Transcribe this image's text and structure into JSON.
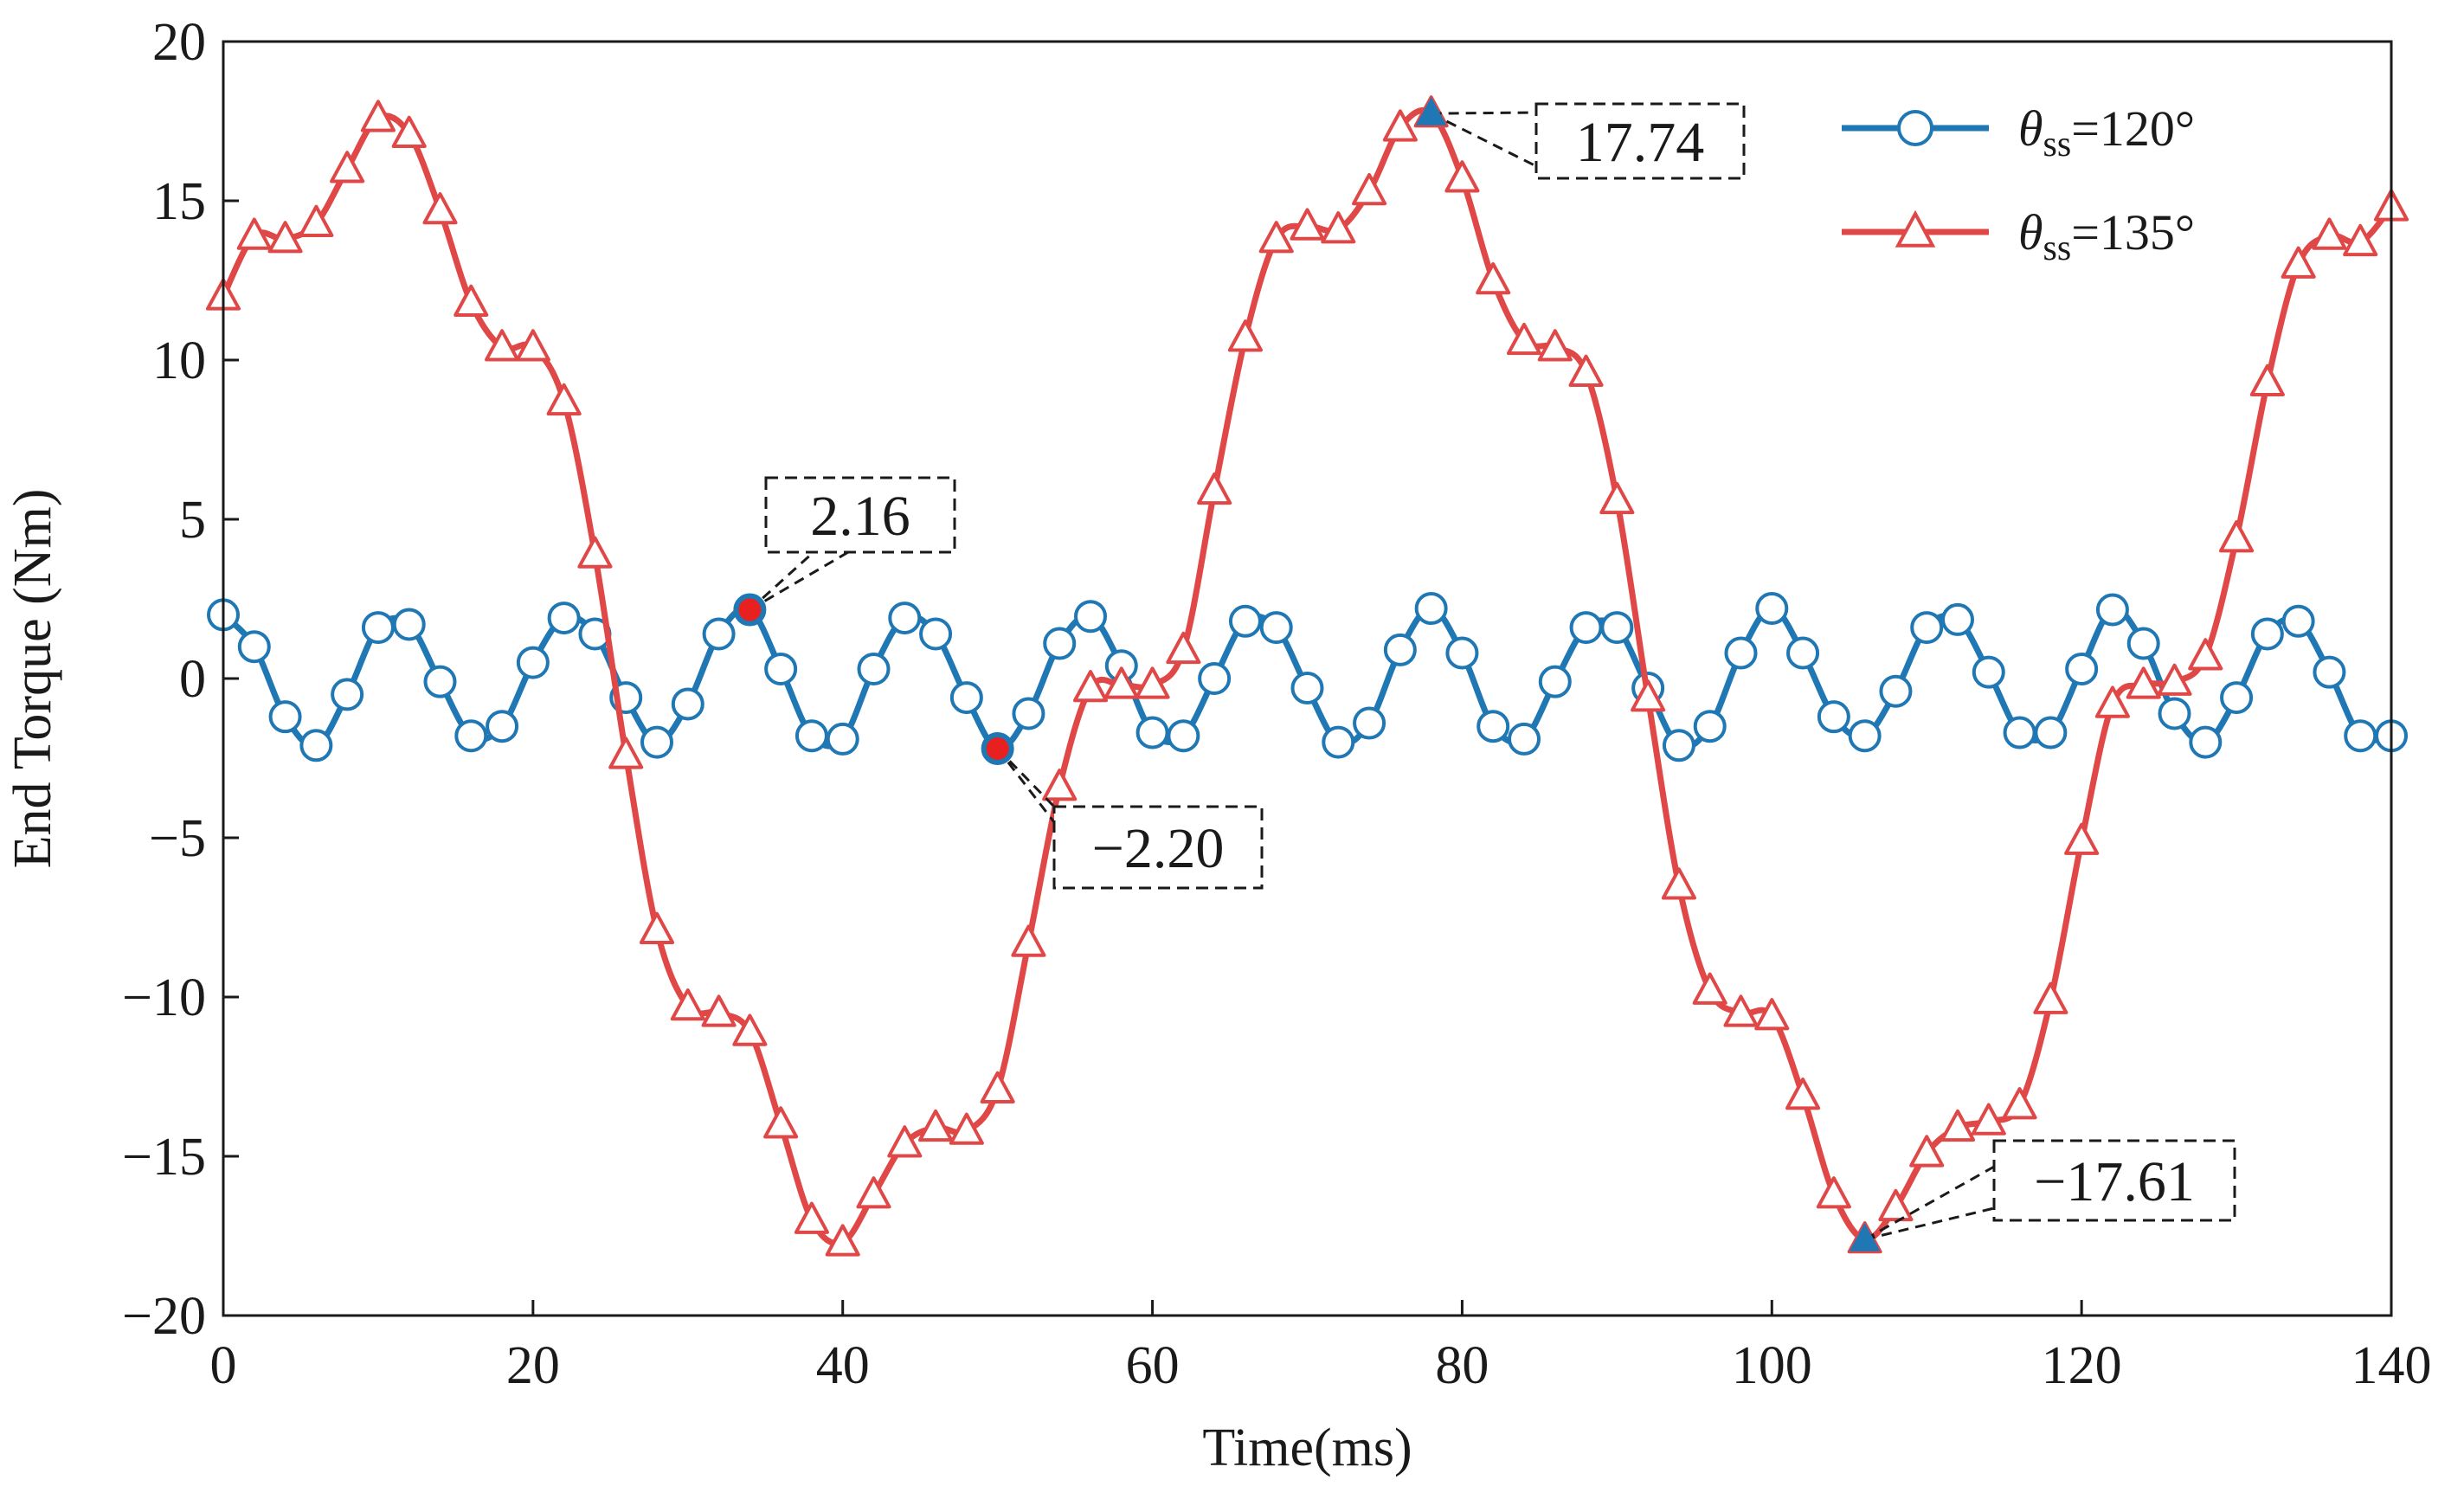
{
  "chart_data": {
    "type": "line",
    "title": "",
    "xlabel": "Time(ms)",
    "ylabel": "End Torque (Nm)",
    "xlim": [
      0,
      140
    ],
    "ylim": [
      -20,
      20
    ],
    "xticks": [
      0,
      20,
      40,
      60,
      80,
      100,
      120,
      140
    ],
    "yticks": [
      -20,
      -15,
      -10,
      -5,
      0,
      5,
      10,
      15,
      20
    ],
    "xtick_labels": [
      "0",
      "20",
      "40",
      "60",
      "80",
      "100",
      "120",
      "140"
    ],
    "ytick_labels": [
      "−20",
      "−15",
      "−10",
      "−5",
      "0",
      "5",
      "10",
      "15",
      "20"
    ],
    "grid": false,
    "legend_position": "top-right",
    "series": [
      {
        "name": "θss=120°",
        "legend_theta": "θ",
        "legend_sub": "ss",
        "legend_rest": "=120°",
        "color": "#1f77b4",
        "marker": "circle",
        "x": [
          0,
          2,
          4,
          6,
          8,
          10,
          12,
          14,
          16,
          18,
          20,
          22,
          24,
          26,
          28,
          30,
          32,
          34,
          36,
          38,
          40,
          42,
          44,
          46,
          48,
          50,
          52,
          54,
          56,
          58,
          60,
          62,
          64,
          66,
          68,
          70,
          72,
          74,
          76,
          78,
          80,
          82,
          84,
          86,
          88,
          90,
          92,
          94,
          96,
          98,
          100,
          102,
          104,
          106,
          108,
          110,
          112,
          114,
          116,
          118,
          120,
          122,
          124,
          126,
          128,
          130,
          132,
          134,
          136,
          138,
          140
        ],
        "y": [
          2.0,
          1.0,
          -1.2,
          -2.1,
          -0.5,
          1.6,
          1.7,
          -0.1,
          -1.8,
          -1.5,
          0.5,
          1.9,
          1.4,
          -0.6,
          -2.0,
          -0.8,
          1.4,
          2.16,
          0.3,
          -1.8,
          -1.9,
          0.3,
          1.9,
          1.4,
          -0.6,
          -2.2,
          -1.1,
          1.1,
          1.95,
          0.4,
          -1.7,
          -1.8,
          0.0,
          1.8,
          1.6,
          -0.3,
          -2.0,
          -1.4,
          0.9,
          2.2,
          0.8,
          -1.5,
          -1.9,
          -0.1,
          1.6,
          1.6,
          -0.3,
          -2.1,
          -1.5,
          0.8,
          2.2,
          0.8,
          -1.2,
          -1.8,
          -0.4,
          1.6,
          1.85,
          0.2,
          -1.7,
          -1.7,
          0.3,
          2.16,
          1.1,
          -1.1,
          -2.0,
          -0.6,
          1.4,
          1.8,
          0.2,
          -1.8,
          -1.8
        ]
      },
      {
        "name": "θss=135°",
        "legend_theta": "θ",
        "legend_sub": "ss",
        "legend_rest": "=135°",
        "color": "#e04848",
        "marker": "triangle",
        "x": [
          0,
          2,
          4,
          6,
          8,
          10,
          12,
          14,
          16,
          18,
          20,
          22,
          24,
          26,
          28,
          30,
          32,
          34,
          36,
          38,
          40,
          42,
          44,
          46,
          48,
          50,
          52,
          54,
          56,
          58,
          60,
          62,
          64,
          66,
          68,
          70,
          72,
          74,
          76,
          78,
          80,
          82,
          84,
          86,
          88,
          90,
          92,
          94,
          96,
          98,
          100,
          102,
          104,
          106,
          108,
          110,
          112,
          114,
          116,
          118,
          120,
          122,
          124,
          126,
          128,
          130,
          132,
          134,
          136,
          138,
          140
        ],
        "y": [
          12.0,
          13.9,
          13.8,
          14.3,
          16.0,
          17.6,
          17.1,
          14.7,
          11.8,
          10.4,
          10.4,
          8.7,
          3.9,
          -2.4,
          -7.9,
          -10.3,
          -10.5,
          -11.1,
          -14.0,
          -17.0,
          -17.7,
          -16.2,
          -14.6,
          -14.1,
          -14.2,
          -12.9,
          -8.3,
          -3.4,
          -0.3,
          -0.2,
          -0.2,
          0.9,
          5.9,
          10.7,
          13.8,
          14.2,
          14.1,
          15.3,
          17.3,
          17.74,
          15.7,
          12.5,
          10.6,
          10.4,
          9.6,
          5.6,
          -0.6,
          -6.5,
          -9.8,
          -10.5,
          -10.6,
          -13.1,
          -16.2,
          -17.61,
          -16.6,
          -14.9,
          -14.1,
          -13.9,
          -13.4,
          -10.1,
          -5.1,
          -0.8,
          -0.2,
          -0.1,
          0.7,
          4.4,
          9.3,
          13.0,
          13.9,
          13.7,
          14.8
        ]
      }
    ],
    "annotations": [
      {
        "text": "17.74",
        "x": 78,
        "y": 17.74,
        "color": "#1f77b4"
      },
      {
        "text": "2.16",
        "x": 34,
        "y": 2.16,
        "color": "#e82020"
      },
      {
        "text": "−2.20",
        "x": 50,
        "y": -2.2,
        "color": "#e82020"
      },
      {
        "text": "−17.61",
        "x": 106,
        "y": -17.61,
        "color": "#1f77b4"
      }
    ]
  }
}
